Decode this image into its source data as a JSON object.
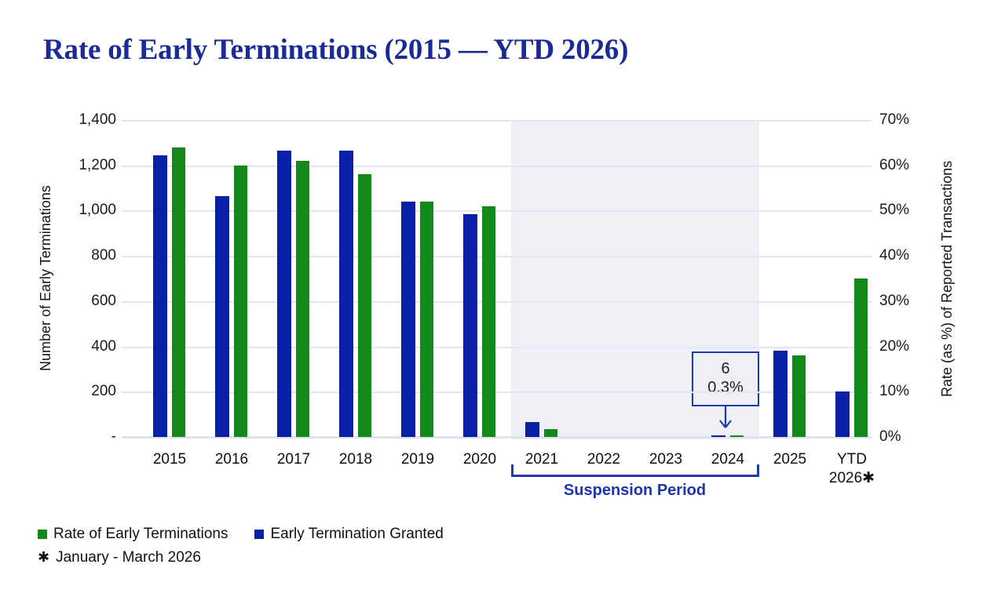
{
  "title": "Rate of Early Terminations (2015 — YTD 2026)",
  "colors": {
    "title_navy": "#1a2a96",
    "blue_bar": "#0820a6",
    "green_bar": "#12891a",
    "accent_blue": "#1e3cac",
    "suspension_label_blue": "#1d33b0",
    "shade_gray": "#eef0f6",
    "gridline_gray": "#e3e6f1"
  },
  "chart_data": {
    "type": "bar",
    "title": "Rate of Early Terminations (2015 — YTD 2026)",
    "categories": [
      "2015",
      "2016",
      "2017",
      "2018",
      "2019",
      "2020",
      "2021",
      "2022",
      "2023",
      "2024",
      "2025",
      "YTD\n2026✱"
    ],
    "series": [
      {
        "name": "Early Termination Granted",
        "axis": "left",
        "color": "#0820a6",
        "values": [
          1245,
          1065,
          1265,
          1265,
          1040,
          985,
          65,
          null,
          null,
          6,
          380,
          200
        ]
      },
      {
        "name": "Rate of Early Terminations",
        "axis": "right",
        "unit": "%",
        "color": "#12891a",
        "values": [
          64,
          60,
          61,
          58,
          52,
          51,
          1.7,
          null,
          null,
          0.3,
          18,
          35
        ]
      }
    ],
    "left_axis": {
      "label": "Number of Early Terminations",
      "min": 0,
      "max": 1400,
      "ticks": [
        "1,400",
        "1,200",
        "1,000",
        "800",
        "600",
        "400",
        "200",
        "-"
      ]
    },
    "right_axis": {
      "label": "Rate (as %) of Reported Transactions",
      "min": 0,
      "max": 70,
      "ticks": [
        "70%",
        "60%",
        "50%",
        "40%",
        "30%",
        "20%",
        "10%",
        "0%"
      ]
    },
    "suspension": {
      "label": "Suspension Period",
      "from": "2021",
      "to": "2024"
    },
    "annotation": {
      "lines": [
        "6",
        "0.3%"
      ],
      "target": "2024"
    },
    "grid": true,
    "legend_position": "bottom-left"
  },
  "legend": [
    {
      "label": "Rate of Early Terminations",
      "color": "#12891a"
    },
    {
      "label": "Early Termination Granted",
      "color": "#0820a6"
    }
  ],
  "footnote": {
    "marker": "✱",
    "text": "January - March 2026"
  }
}
